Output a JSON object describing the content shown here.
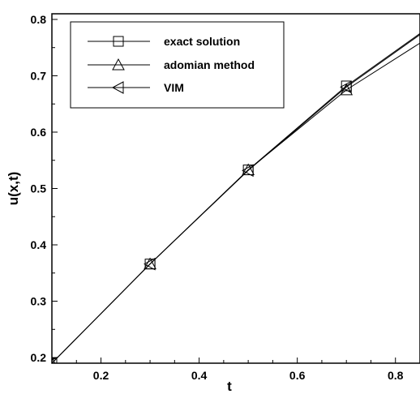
{
  "chart_data": {
    "type": "line",
    "title": "",
    "xlabel": "t",
    "ylabel": "u(x,t)",
    "xlim": [
      0.1,
      0.85
    ],
    "ylim": [
      0.19,
      0.81
    ],
    "x_ticks": [
      0.2,
      0.4,
      0.6,
      0.8
    ],
    "y_ticks": [
      0.2,
      0.3,
      0.4,
      0.5,
      0.6,
      0.7,
      0.8
    ],
    "x_tick_labels": [
      "0.2",
      "0.4",
      "0.6",
      "0.8"
    ],
    "y_tick_labels": [
      "0.2",
      "0.3",
      "0.4",
      "0.5",
      "0.6",
      "0.7",
      "0.8"
    ],
    "grid": false,
    "legend_position": "top-left",
    "series": [
      {
        "name": "exact solution",
        "marker": "square",
        "x": [
          0.1,
          0.3,
          0.5,
          0.7,
          0.85
        ],
        "y": [
          0.19,
          0.366,
          0.533,
          0.682,
          0.775
        ]
      },
      {
        "name": "adomian method",
        "marker": "triangle-up",
        "x": [
          0.1,
          0.3,
          0.5,
          0.7,
          0.85
        ],
        "y": [
          0.19,
          0.366,
          0.533,
          0.675,
          0.758
        ]
      },
      {
        "name": "VIM",
        "marker": "triangle-left",
        "x": [
          0.1,
          0.3,
          0.5,
          0.7,
          0.85
        ],
        "y": [
          0.19,
          0.366,
          0.532,
          0.68,
          0.773
        ]
      }
    ]
  }
}
